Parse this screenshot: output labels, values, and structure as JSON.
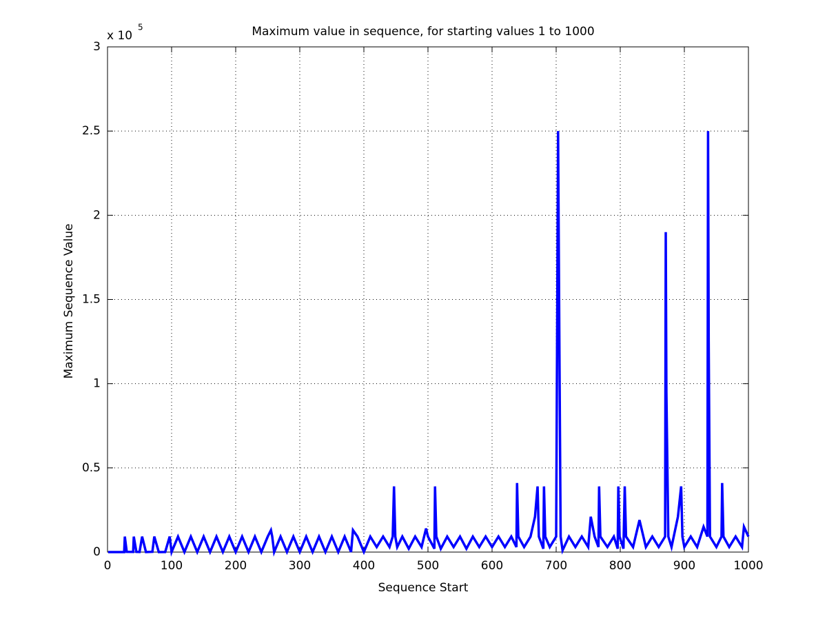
{
  "chart_data": {
    "type": "line",
    "title": "Maximum value in sequence, for starting values 1 to 1000",
    "xlabel": "Sequence Start",
    "ylabel": "Maximum Sequence Value",
    "y_scale_label": "x 10",
    "y_scale_exponent": "5",
    "xlim": [
      0,
      1000
    ],
    "xticks": [
      0,
      100,
      200,
      300,
      400,
      500,
      600,
      700,
      800,
      900,
      1000
    ],
    "ylim": [
      0,
      3
    ],
    "yticks": [
      0,
      0.5,
      1,
      1.5,
      2,
      2.5,
      3
    ],
    "grid": true,
    "series": [
      {
        "color": "#0000ff",
        "x": [
          1,
          26,
          27,
          30,
          40,
          41,
          45,
          50,
          54,
          60,
          70,
          73,
          80,
          90,
          97,
          100,
          110,
          120,
          130,
          140,
          150,
          160,
          170,
          180,
          190,
          200,
          210,
          220,
          230,
          240,
          250,
          255,
          257,
          260,
          270,
          280,
          290,
          300,
          310,
          320,
          330,
          340,
          350,
          360,
          370,
          380,
          383,
          390,
          400,
          410,
          420,
          430,
          440,
          445,
          447,
          449,
          452,
          460,
          470,
          480,
          490,
          497,
          500,
          510,
          511,
          513,
          520,
          530,
          540,
          550,
          560,
          570,
          580,
          590,
          600,
          610,
          620,
          630,
          638,
          639,
          641,
          650,
          660,
          667,
          671,
          673,
          680,
          681,
          683,
          690,
          700,
          703,
          705,
          707,
          710,
          720,
          730,
          740,
          750,
          754,
          760,
          766,
          767,
          769,
          780,
          790,
          796,
          797,
          799,
          805,
          807,
          809,
          820,
          830,
          840,
          850,
          860,
          870,
          871,
          872,
          875,
          880,
          890,
          895,
          897,
          900,
          910,
          920,
          930,
          936,
          937,
          938,
          940,
          950,
          958,
          959,
          961,
          970,
          980,
          990,
          993,
          1000
        ],
        "values": [
          0.0001,
          0.0001,
          0.092,
          0.0016,
          0.0009,
          0.092,
          0.0014,
          0.0009,
          0.092,
          0.0002,
          0.0016,
          0.092,
          0.0001,
          0.0004,
          0.092,
          0.0001,
          0.092,
          0.0004,
          0.092,
          0.0002,
          0.092,
          0.0002,
          0.092,
          0.0008,
          0.092,
          0.0002,
          0.092,
          0.0007,
          0.092,
          0.0004,
          0.092,
          0.13,
          0.092,
          0.0003,
          0.092,
          0.0008,
          0.092,
          0.0005,
          0.092,
          0.0005,
          0.092,
          0.0005,
          0.092,
          0.0005,
          0.092,
          0.0006,
          0.13,
          0.092,
          0.0006,
          0.092,
          0.03,
          0.092,
          0.03,
          0.092,
          0.39,
          0.092,
          0.03,
          0.092,
          0.02,
          0.092,
          0.03,
          0.14,
          0.092,
          0.02,
          0.39,
          0.092,
          0.02,
          0.092,
          0.03,
          0.092,
          0.02,
          0.092,
          0.03,
          0.092,
          0.03,
          0.092,
          0.03,
          0.092,
          0.03,
          0.41,
          0.092,
          0.03,
          0.092,
          0.21,
          0.39,
          0.092,
          0.02,
          0.39,
          0.092,
          0.03,
          0.092,
          2.5,
          1.25,
          0.092,
          0.01,
          0.092,
          0.03,
          0.092,
          0.03,
          0.21,
          0.092,
          0.03,
          0.39,
          0.092,
          0.03,
          0.092,
          0.02,
          0.39,
          0.092,
          0.02,
          0.39,
          0.092,
          0.03,
          0.19,
          0.03,
          0.092,
          0.03,
          0.092,
          1.9,
          0.95,
          0.092,
          0.03,
          0.21,
          0.39,
          0.092,
          0.03,
          0.092,
          0.03,
          0.15,
          0.092,
          2.5,
          1.25,
          0.092,
          0.03,
          0.092,
          0.41,
          0.092,
          0.03,
          0.092,
          0.03,
          0.15,
          0.092
        ]
      }
    ]
  }
}
